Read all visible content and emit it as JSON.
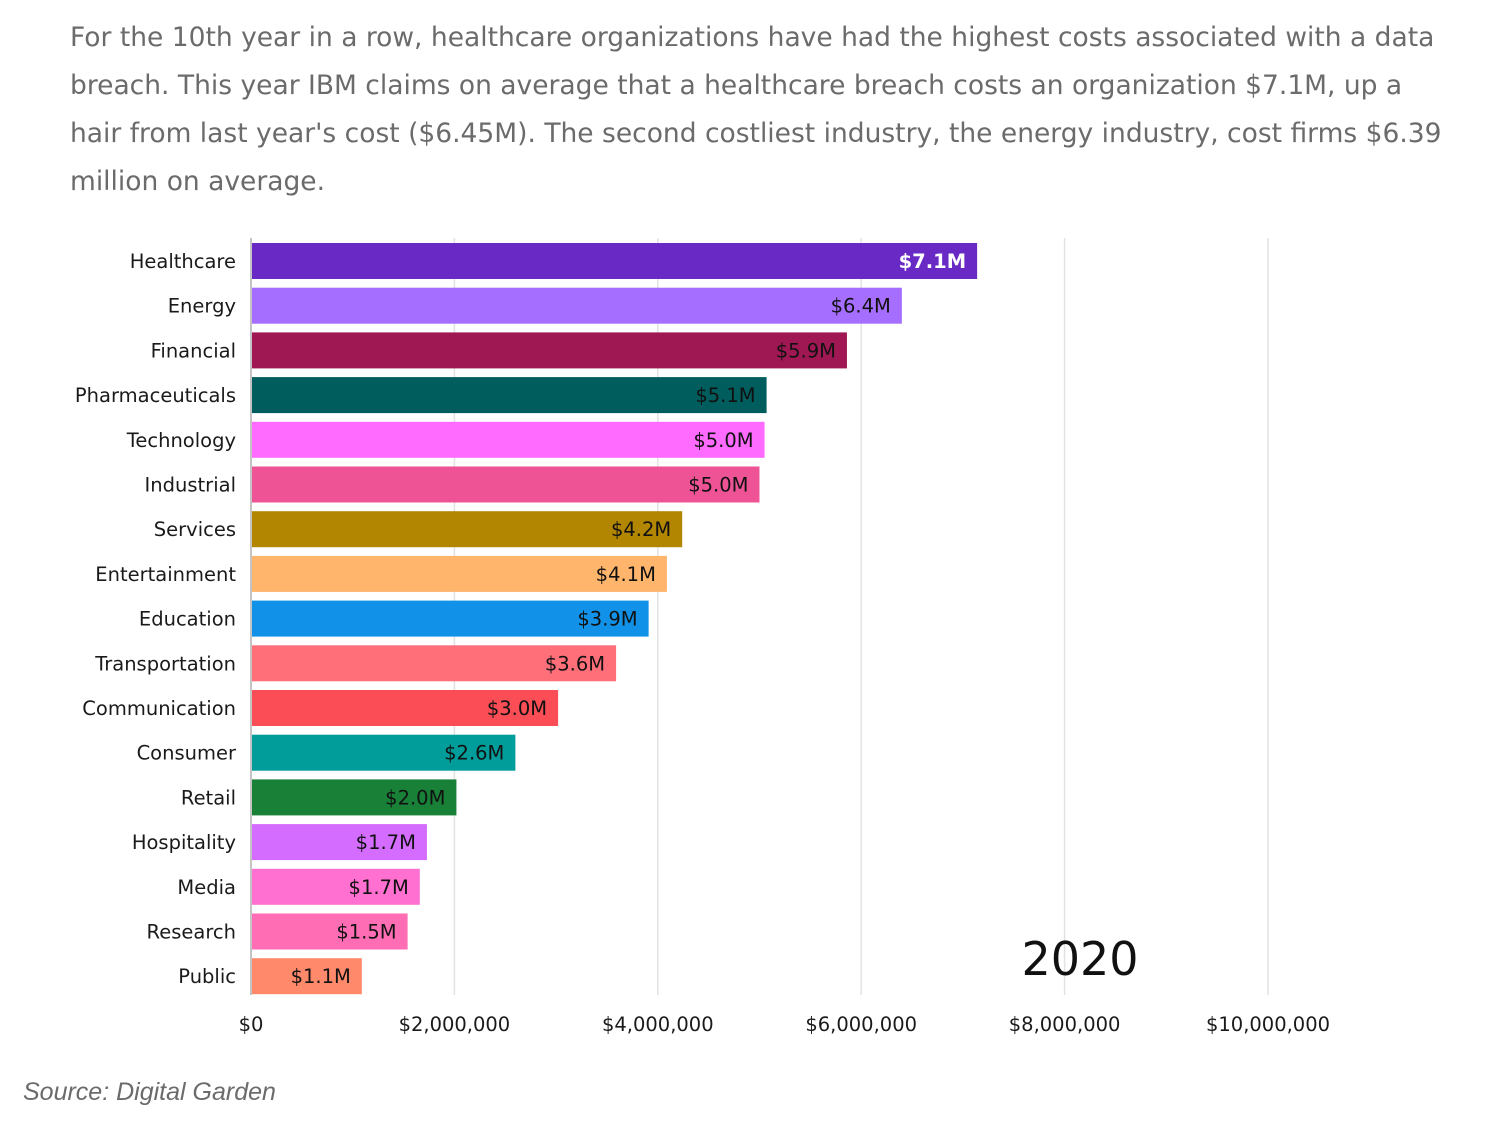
{
  "intro_text": "For the 10th year in a row, healthcare organizations have had the highest costs associated with a data breach. This year IBM claims on average that a healthcare breach costs an organization $7.1M, up a hair from last year's cost ($6.45M). The second costliest industry, the energy industry, cost firms $6.39 million on average.",
  "source_text": "Source: Digital Garden",
  "chart_data": {
    "type": "bar",
    "orientation": "horizontal",
    "categories": [
      "Healthcare",
      "Energy",
      "Financial",
      "Pharmaceuticals",
      "Technology",
      "Industrial",
      "Services",
      "Entertainment",
      "Education",
      "Transportation",
      "Communication",
      "Consumer",
      "Retail",
      "Hospitality",
      "Media",
      "Research",
      "Public"
    ],
    "values": [
      7130000,
      6390000,
      5850000,
      5060000,
      5040000,
      4990000,
      4230000,
      4080000,
      3900000,
      3580000,
      3010000,
      2590000,
      2010000,
      1720000,
      1650000,
      1530000,
      1080000
    ],
    "value_labels": [
      "$7.1M",
      "$6.4M",
      "$5.9M",
      "$5.1M",
      "$5.0M",
      "$5.0M",
      "$4.2M",
      "$4.1M",
      "$3.9M",
      "$3.6M",
      "$3.0M",
      "$2.6M",
      "$2.0M",
      "$1.7M",
      "$1.7M",
      "$1.5M",
      "$1.1M"
    ],
    "colors": [
      "#6929c4",
      "#a56eff",
      "#9f1853",
      "#005d5d",
      "#ff6bff",
      "#ee5396",
      "#b28600",
      "#ffb56b",
      "#1192e8",
      "#ff6f7a",
      "#fa4d56",
      "#009d9a",
      "#198038",
      "#d36cff",
      "#ff70d1",
      "#ff6eb4",
      "#ff8a6b"
    ],
    "xticks": [
      0,
      2000000,
      4000000,
      6000000,
      8000000,
      10000000
    ],
    "xtick_labels": [
      "$0",
      "$2,000,000",
      "$4,000,000",
      "$6,000,000",
      "$8,000,000",
      "$10,000,000"
    ],
    "xlim": [
      0,
      11000000
    ],
    "annotation": "2020",
    "grid": true,
    "title": "",
    "xlabel": "",
    "ylabel": ""
  }
}
